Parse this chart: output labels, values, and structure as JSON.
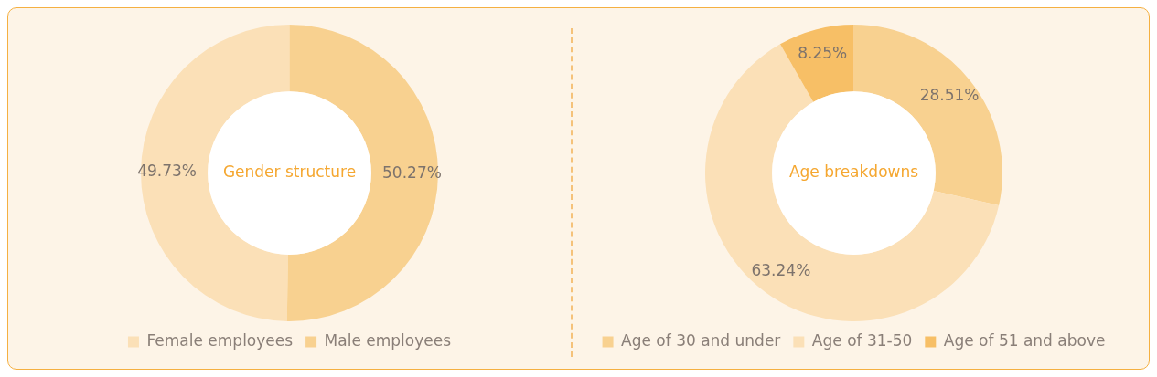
{
  "chart_data": [
    {
      "type": "donut",
      "title": "Gender structure",
      "categories": [
        "Female employees",
        "Male employees"
      ],
      "values": [
        49.73,
        50.27
      ],
      "colors": [
        "#fbe0b7",
        "#f8d190"
      ],
      "value_labels": [
        "49.73%",
        "50.27%"
      ],
      "legend": "bottom"
    },
    {
      "type": "donut",
      "title": "Age breakdowns",
      "categories": [
        "Age of 30 and under",
        "Age of 31-50",
        "Age of 51 and above"
      ],
      "values": [
        28.51,
        63.24,
        8.25
      ],
      "colors": [
        "#f8d190",
        "#fbe0b7",
        "#f7bf66"
      ],
      "value_labels": [
        "28.51%",
        "63.24%",
        "8.25%"
      ],
      "legend": "bottom"
    }
  ]
}
